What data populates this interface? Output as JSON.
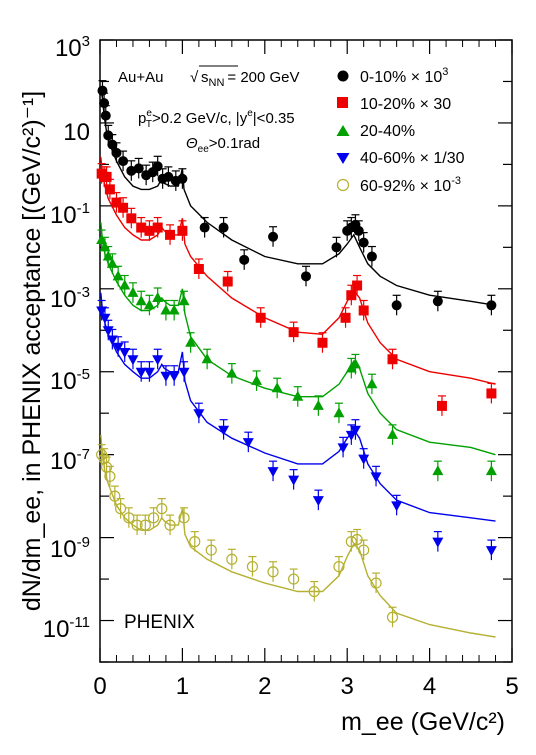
{
  "chart_data": {
    "type": "scatter",
    "title": "",
    "xlabel": "m_ee (GeV/c²)",
    "ylabel": "dN/dm_ee, in PHENIX acceptance [(GeV/c²)⁻¹]",
    "xlim": [
      0,
      5
    ],
    "ylim": [
      1e-12,
      1000
    ],
    "y_scale": "log",
    "grid": false,
    "legend_position": "top-right",
    "annotations": {
      "system": "Au+Au",
      "energy": "= 200 GeV",
      "sqrt_label": "s",
      "sqrt_sub": "NN",
      "pt_cut": "p",
      "pt_sup": "e",
      "pt_sub": "T",
      "pt_rest": ">0.2 GeV/c, |y",
      "pt_sup2": "e",
      "pt_end": "|<0.35",
      "theta": "Θ",
      "theta_sub": "ee",
      "theta_rest": ">0.1rad",
      "experiment": "PHENIX"
    },
    "x_ticks": [
      "0",
      "1",
      "2",
      "3",
      "4",
      "5"
    ],
    "y_ticks": [
      {
        "mantissa": "10",
        "exp": "-11",
        "value": 1e-11
      },
      {
        "mantissa": "10",
        "exp": "-9",
        "value": 1e-09
      },
      {
        "mantissa": "10",
        "exp": "-7",
        "value": 1e-07
      },
      {
        "mantissa": "10",
        "exp": "-5",
        "value": 1e-05
      },
      {
        "mantissa": "10",
        "exp": "-3",
        "value": 0.001
      },
      {
        "mantissa": "10",
        "exp": "-1",
        "value": 0.1
      },
      {
        "mantissa": "10",
        "exp": "",
        "value": 10
      },
      {
        "mantissa": "10",
        "exp": "3",
        "value": 1000
      }
    ],
    "series": [
      {
        "name": "0-10% × 10",
        "name_sup": "3",
        "marker": "circle",
        "color": "#000000",
        "x": [
          0.03,
          0.05,
          0.07,
          0.1,
          0.15,
          0.2,
          0.28,
          0.38,
          0.47,
          0.56,
          0.64,
          0.7,
          0.76,
          0.83,
          0.92,
          1.0,
          1.27,
          1.5,
          1.75,
          2.1,
          2.5,
          2.87,
          3.0,
          3.05,
          3.1,
          3.14,
          3.2,
          3.3,
          3.6,
          4.1,
          4.75
        ],
        "y": [
          60,
          30,
          15,
          5,
          3,
          1.9,
          1.2,
          0.7,
          0.8,
          0.55,
          0.65,
          0.9,
          0.45,
          0.5,
          0.4,
          0.45,
          0.03,
          0.03,
          0.005,
          0.018,
          0.002,
          0.01,
          0.025,
          0.03,
          0.035,
          0.025,
          0.013,
          0.006,
          0.0004,
          0.0005,
          0.0004
        ],
        "line_x": [
          0.01,
          0.03,
          0.05,
          0.08,
          0.12,
          0.2,
          0.3,
          0.4,
          0.5,
          0.6,
          0.7,
          0.75,
          0.78,
          0.85,
          0.95,
          1.0,
          1.02,
          1.1,
          1.3,
          1.6,
          2.0,
          2.4,
          2.7,
          2.9,
          3.0,
          3.08,
          3.15,
          3.25,
          3.4,
          3.6,
          4.0,
          4.5,
          4.8
        ],
        "line_y": [
          60,
          40,
          15,
          6,
          3,
          1.2,
          0.5,
          0.3,
          0.25,
          0.25,
          0.3,
          0.45,
          0.35,
          0.3,
          0.3,
          0.8,
          0.25,
          0.1,
          0.04,
          0.015,
          0.006,
          0.004,
          0.004,
          0.007,
          0.012,
          0.02,
          0.01,
          0.004,
          0.002,
          0.0012,
          0.0007,
          0.0005,
          0.0004
        ]
      },
      {
        "name": "10-20% × 30",
        "name_sup": "",
        "marker": "square",
        "color": "#ee0000",
        "x": [
          0.02,
          0.05,
          0.08,
          0.12,
          0.2,
          0.28,
          0.38,
          0.5,
          0.6,
          0.7,
          0.85,
          1.0,
          1.2,
          1.55,
          1.95,
          2.35,
          2.7,
          2.98,
          3.05,
          3.12,
          3.2,
          3.55,
          4.15,
          4.75
        ],
        "y": [
          0.6,
          0.5,
          0.5,
          0.25,
          0.12,
          0.09,
          0.05,
          0.03,
          0.025,
          0.03,
          0.02,
          0.025,
          0.003,
          0.0015,
          0.0002,
          9e-05,
          5e-05,
          0.0002,
          0.0007,
          0.0012,
          0.0003,
          2e-05,
          1.5e-06,
          3e-06
        ],
        "line_x": [
          0.01,
          0.03,
          0.06,
          0.1,
          0.2,
          0.3,
          0.4,
          0.5,
          0.6,
          0.7,
          0.75,
          0.78,
          0.85,
          0.95,
          1.0,
          1.03,
          1.1,
          1.3,
          1.6,
          2.0,
          2.4,
          2.7,
          2.9,
          3.0,
          3.08,
          3.15,
          3.25,
          3.4,
          3.6,
          4.0,
          4.5,
          4.8
        ],
        "line_y": [
          1.5,
          0.6,
          0.3,
          0.15,
          0.06,
          0.03,
          0.02,
          0.015,
          0.015,
          0.02,
          0.03,
          0.025,
          0.02,
          0.02,
          0.05,
          0.012,
          0.006,
          0.002,
          0.0006,
          0.0002,
          9e-05,
          8e-05,
          0.0002,
          0.0005,
          0.0009,
          0.0006,
          0.00015,
          5e-05,
          2e-05,
          1e-05,
          7e-06,
          5e-06
        ]
      },
      {
        "name": "20-40%",
        "name_sup": "",
        "marker": "triangle-up",
        "color": "#00a000",
        "x": [
          0.02,
          0.06,
          0.1,
          0.15,
          0.22,
          0.3,
          0.4,
          0.5,
          0.6,
          0.7,
          0.8,
          0.9,
          1.02,
          1.1,
          1.3,
          1.6,
          1.9,
          2.15,
          2.4,
          2.65,
          2.9,
          3.05,
          3.1,
          3.3,
          3.55,
          4.1,
          4.75
        ],
        "y": [
          0.015,
          0.01,
          0.006,
          0.004,
          0.002,
          0.0012,
          0.0008,
          0.0005,
          0.0004,
          0.0006,
          0.0003,
          0.0003,
          0.0005,
          5e-05,
          2e-05,
          9e-06,
          6e-06,
          4e-06,
          2.5e-06,
          1.5e-06,
          1e-06,
          1.2e-05,
          1.5e-05,
          5e-06,
          3e-07,
          4e-08,
          4e-08
        ],
        "line_x": [
          0.01,
          0.03,
          0.06,
          0.1,
          0.2,
          0.3,
          0.4,
          0.5,
          0.6,
          0.7,
          0.75,
          0.78,
          0.85,
          0.95,
          1.0,
          1.03,
          1.1,
          1.3,
          1.6,
          2.0,
          2.4,
          2.7,
          2.9,
          3.0,
          3.08,
          3.15,
          3.25,
          3.4,
          3.6,
          4.0,
          4.5,
          4.8
        ],
        "line_y": [
          0.04,
          0.015,
          0.007,
          0.004,
          0.0015,
          0.0007,
          0.0004,
          0.0003,
          0.0003,
          0.0004,
          0.0006,
          0.0005,
          0.0004,
          0.0004,
          0.001,
          0.00025,
          7e-05,
          2e-05,
          8e-06,
          4e-06,
          2.5e-06,
          2.5e-06,
          5e-06,
          1e-05,
          1.8e-05,
          1.2e-05,
          3e-06,
          1e-06,
          4e-07,
          2e-07,
          1.5e-07,
          1e-07
        ]
      },
      {
        "name": "40-60% × 1/30",
        "name_sup": "",
        "marker": "triangle-down",
        "color": "#0000ee",
        "x": [
          0.02,
          0.06,
          0.1,
          0.15,
          0.22,
          0.3,
          0.4,
          0.5,
          0.6,
          0.7,
          0.8,
          0.9,
          1.02,
          1.2,
          1.5,
          1.8,
          2.1,
          2.35,
          2.65,
          2.95,
          3.05,
          3.1,
          3.2,
          3.35,
          3.6,
          4.1,
          4.75
        ],
        "y": [
          0.0003,
          0.0002,
          0.0001,
          6e-05,
          4e-05,
          3e-05,
          2e-05,
          1e-05,
          1e-05,
          2e-05,
          8e-06,
          8e-06,
          1e-05,
          1e-06,
          4e-07,
          2e-07,
          4e-08,
          2.5e-08,
          8e-09,
          1.5e-07,
          3e-07,
          4e-07,
          8e-08,
          3e-08,
          6e-09,
          8e-10,
          5e-10
        ],
        "line_x": [
          0.01,
          0.03,
          0.06,
          0.1,
          0.2,
          0.3,
          0.4,
          0.5,
          0.6,
          0.7,
          0.75,
          0.78,
          0.85,
          0.95,
          1.0,
          1.03,
          1.1,
          1.3,
          1.6,
          2.0,
          2.4,
          2.7,
          2.9,
          3.0,
          3.08,
          3.15,
          3.25,
          3.4,
          3.6,
          4.0,
          4.5,
          4.8
        ],
        "line_y": [
          0.0008,
          0.0003,
          0.00015,
          8e-05,
          3e-05,
          1.5e-05,
          1e-05,
          7e-06,
          7e-06,
          1e-05,
          1.5e-05,
          1.2e-05,
          1e-05,
          1e-05,
          3e-05,
          6e-06,
          2e-06,
          6e-07,
          2.5e-07,
          1.1e-07,
          6e-08,
          6e-08,
          1.2e-07,
          2.5e-07,
          4e-07,
          2.5e-07,
          6e-08,
          2e-08,
          8e-09,
          4e-09,
          3e-09,
          2.5e-09
        ]
      },
      {
        "name": "60-92% × 10",
        "name_sup": "-3",
        "marker": "open-circle",
        "color": "#b5b030",
        "x": [
          0.02,
          0.05,
          0.08,
          0.12,
          0.18,
          0.25,
          0.35,
          0.45,
          0.55,
          0.65,
          0.75,
          0.85,
          1.02,
          1.15,
          1.35,
          1.6,
          1.85,
          2.1,
          2.35,
          2.6,
          2.9,
          3.05,
          3.12,
          3.2,
          3.35,
          3.55
        ],
        "y": [
          1e-07,
          8e-08,
          5e-08,
          3e-08,
          1e-08,
          5e-09,
          3e-09,
          2e-09,
          2e-09,
          3e-09,
          5e-09,
          2e-09,
          3e-09,
          8e-10,
          5e-10,
          3e-10,
          2e-10,
          1.5e-10,
          1e-10,
          5e-11,
          2e-10,
          8e-10,
          9e-10,
          5e-10,
          8e-11,
          1.2e-11
        ],
        "line_x": [
          0.01,
          0.03,
          0.06,
          0.1,
          0.2,
          0.3,
          0.4,
          0.5,
          0.6,
          0.7,
          0.75,
          0.78,
          0.85,
          0.95,
          1.0,
          1.03,
          1.1,
          1.3,
          1.6,
          2.0,
          2.4,
          2.7,
          2.9,
          3.0,
          3.08,
          3.15,
          3.25,
          3.4,
          3.6,
          4.0,
          4.5,
          4.8
        ],
        "line_y": [
          3e-07,
          1e-07,
          4e-08,
          2e-08,
          6e-09,
          3e-09,
          2e-09,
          1.5e-09,
          1.5e-09,
          2e-09,
          3e-09,
          2.5e-09,
          2e-09,
          2e-09,
          5e-09,
          1.2e-09,
          6e-10,
          3e-10,
          1.5e-10,
          8e-11,
          5e-11,
          5e-11,
          1.2e-10,
          3.5e-10,
          7e-10,
          5e-10,
          1.2e-10,
          4e-11,
          1.5e-11,
          8e-12,
          5e-12,
          4e-12
        ]
      }
    ]
  }
}
